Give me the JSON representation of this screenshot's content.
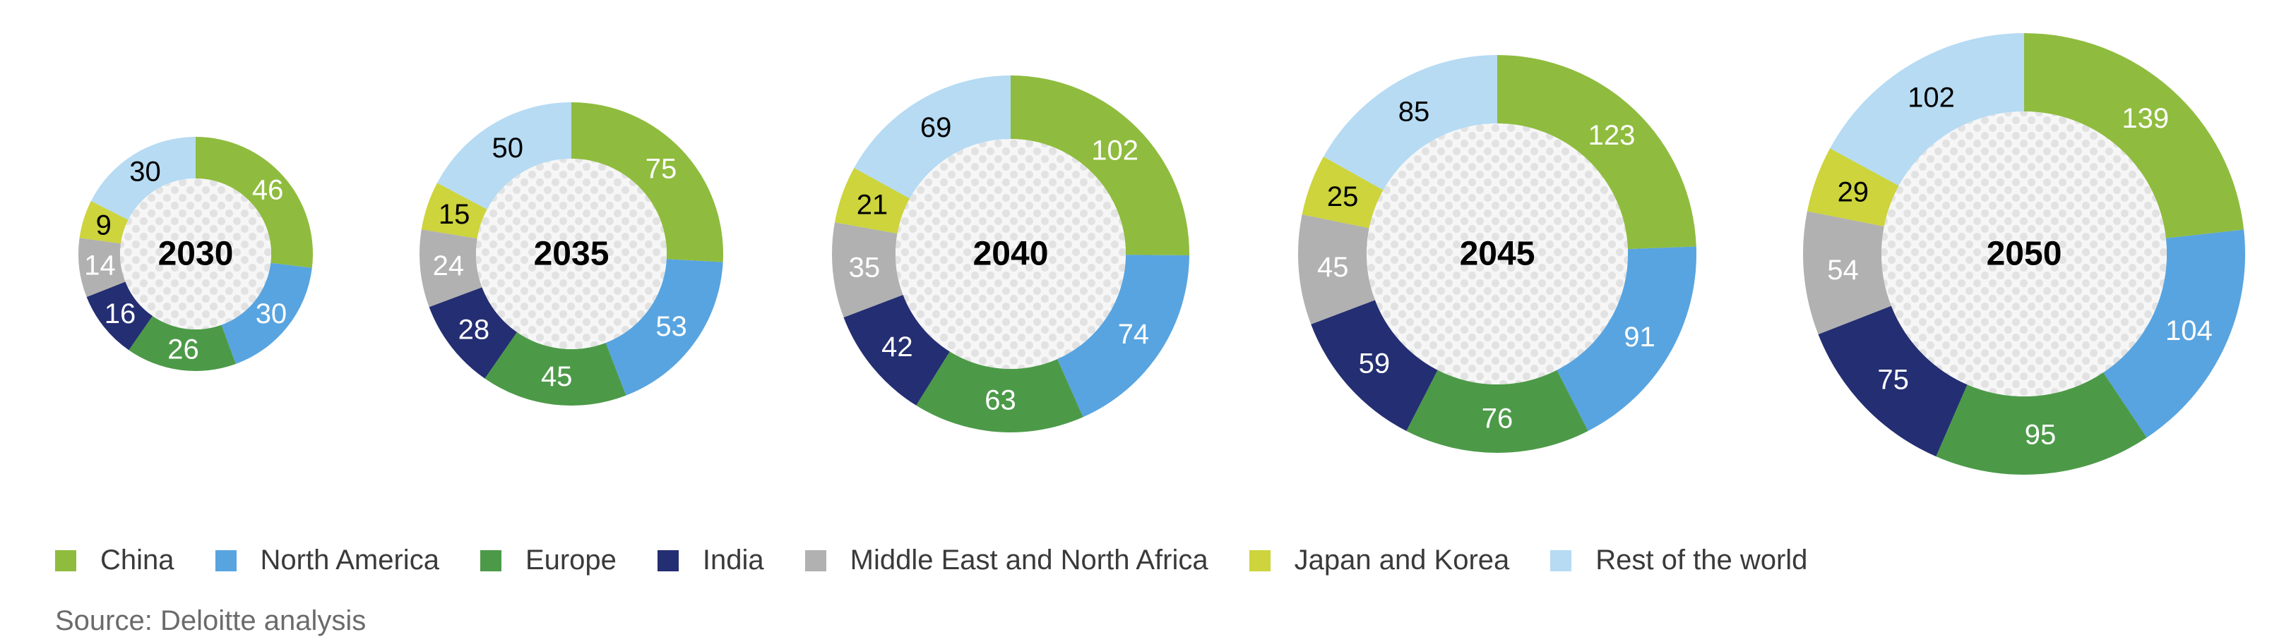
{
  "chart_data": {
    "type": "donut",
    "categories": [
      "China",
      "North America",
      "Europe",
      "India",
      "Middle East and North Africa",
      "Japan and Korea",
      "Rest of the world"
    ],
    "colors": {
      "China": "#8fbc3e",
      "North America": "#58a4e0",
      "Europe": "#4c9a48",
      "India": "#242e72",
      "Middle East and North Africa": "#b1b1b1",
      "Japan and Korea": "#cdd43c",
      "Rest of the world": "#b6dbf3"
    },
    "label_colors": {
      "China": "#ffffff",
      "North America": "#ffffff",
      "Europe": "#ffffff",
      "India": "#ffffff",
      "Middle East and North Africa": "#ffffff",
      "Japan and Korea": "#000000",
      "Rest of the world": "#000000"
    },
    "charts": [
      {
        "year": "2030",
        "values": [
          46,
          30,
          26,
          16,
          14,
          9,
          30
        ]
      },
      {
        "year": "2035",
        "values": [
          75,
          53,
          45,
          28,
          24,
          15,
          50
        ]
      },
      {
        "year": "2040",
        "values": [
          102,
          74,
          63,
          42,
          35,
          21,
          69
        ]
      },
      {
        "year": "2045",
        "values": [
          123,
          91,
          76,
          59,
          45,
          25,
          85
        ]
      },
      {
        "year": "2050",
        "values": [
          139,
          104,
          95,
          75,
          54,
          29,
          102
        ]
      }
    ],
    "legend": [
      "China",
      "North America",
      "Europe",
      "India",
      "Middle East and North Africa",
      "Japan and Korea",
      "Rest of the world"
    ],
    "hole_color": "#e9e9e9",
    "source": "Source: Deloitte analysis"
  }
}
